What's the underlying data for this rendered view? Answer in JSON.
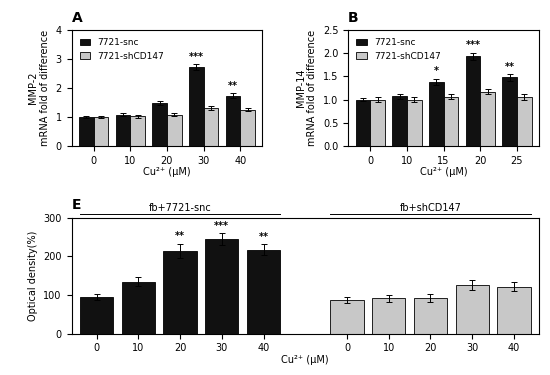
{
  "chart_data": [
    {
      "type": "bar",
      "title": "A",
      "categories": [
        "0",
        "10",
        "20",
        "30",
        "40"
      ],
      "x_label": "Cu²⁺ (μM)",
      "y_label": "MMP-2\nmRNA fold of difference",
      "series": [
        {
          "name": "7721-snc",
          "color": "#111111",
          "values": [
            1.0,
            1.08,
            1.47,
            2.72,
            1.73
          ],
          "errors": [
            0.04,
            0.05,
            0.07,
            0.1,
            0.09
          ]
        },
        {
          "name": "7721-shCD147",
          "color": "#c8c8c8",
          "values": [
            1.0,
            1.02,
            1.08,
            1.3,
            1.25
          ],
          "errors": [
            0.05,
            0.04,
            0.05,
            0.07,
            0.06
          ]
        }
      ],
      "ylim": [
        0,
        4
      ],
      "yticks": [
        0,
        1,
        2,
        3,
        4
      ],
      "legend": "upper left",
      "annotations": [
        {
          "text": "***",
          "series": "7721-snc",
          "category": "30"
        },
        {
          "text": "**",
          "series": "7721-snc",
          "category": "40"
        }
      ]
    },
    {
      "type": "bar",
      "title": "B",
      "categories": [
        "0",
        "10",
        "15",
        "20",
        "25"
      ],
      "x_label": "Cu²⁺ (μM)",
      "y_label": "MMP-14\nmRNA fold of difference",
      "series": [
        {
          "name": "7721-snc",
          "color": "#111111",
          "values": [
            1.0,
            1.07,
            1.38,
            1.93,
            1.48
          ],
          "errors": [
            0.04,
            0.06,
            0.07,
            0.08,
            0.07
          ]
        },
        {
          "name": "7721-shCD147",
          "color": "#c8c8c8",
          "values": [
            1.0,
            1.0,
            1.06,
            1.17,
            1.06
          ],
          "errors": [
            0.05,
            0.05,
            0.05,
            0.06,
            0.07
          ]
        }
      ],
      "ylim": [
        0,
        2.5
      ],
      "yticks": [
        {
          "value": 0.0,
          "label": "0.0"
        },
        {
          "value": 0.5,
          "label": "0.5"
        },
        {
          "value": 1.0,
          "label": "1.0"
        },
        {
          "value": 1.5,
          "label": "1.5"
        },
        {
          "value": 2.0,
          "label": "2.0"
        },
        {
          "value": 2.5,
          "label": "2.5"
        }
      ],
      "legend": "upper left",
      "annotations": [
        {
          "text": "*",
          "series": "7721-snc",
          "category": "15"
        },
        {
          "text": "***",
          "series": "7721-snc",
          "category": "20"
        },
        {
          "text": "**",
          "series": "7721-snc",
          "category": "25"
        }
      ]
    },
    {
      "type": "bar",
      "title": "E",
      "categories": [
        "0",
        "10",
        "20",
        "30",
        "40",
        null,
        "0",
        "10",
        "20",
        "30",
        "40"
      ],
      "x_label": "Cu²⁺ (μM)",
      "y_label": "Optical density(%)",
      "series": [
        {
          "name": "fb+7721-snc",
          "color": "#111111",
          "values": [
            95,
            135,
            215,
            245,
            218,
            null,
            null,
            null,
            null,
            null,
            null
          ],
          "errors": [
            8,
            12,
            18,
            16,
            14,
            null,
            null,
            null,
            null,
            null,
            null
          ]
        },
        {
          "name": "fb+shCD147",
          "color": "#c8c8c8",
          "values": [
            null,
            null,
            null,
            null,
            null,
            null,
            88,
            92,
            93,
            126,
            122
          ],
          "errors": [
            null,
            null,
            null,
            null,
            null,
            null,
            8,
            9,
            10,
            12,
            12
          ]
        }
      ],
      "ylim": [
        0,
        300
      ],
      "yticks": [
        0,
        100,
        200,
        300
      ],
      "annotations": [
        {
          "text": "**",
          "series": "fb+7721-snc",
          "category": "20"
        },
        {
          "text": "***",
          "series": "fb+7721-snc",
          "category": "30"
        },
        {
          "text": "**",
          "series": "fb+7721-snc",
          "category": "40"
        }
      ]
    }
  ]
}
